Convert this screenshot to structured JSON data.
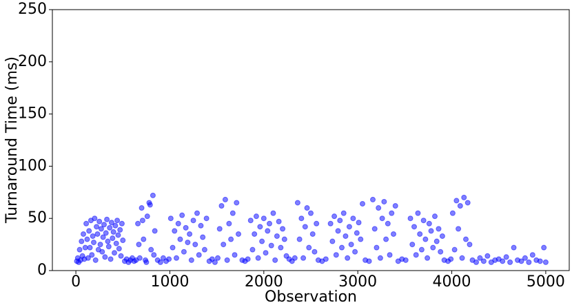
{
  "chart_data": {
    "type": "scatter",
    "x_label": "Observation",
    "y_label": "Turnaround Time (ms)",
    "xlim": [
      -250,
      5250
    ],
    "ylim": [
      0,
      250
    ],
    "xticks": [
      0,
      1000,
      2000,
      3000,
      4000,
      5000
    ],
    "yticks": [
      0,
      50,
      100,
      150,
      200,
      250
    ],
    "color": "#0000ff",
    "opacity": 0.5,
    "grid": false,
    "x": [
      10,
      20,
      30,
      40,
      50,
      60,
      70,
      80,
      90,
      100,
      110,
      120,
      130,
      140,
      150,
      160,
      170,
      180,
      190,
      200,
      210,
      220,
      230,
      240,
      250,
      260,
      270,
      280,
      290,
      300,
      310,
      320,
      330,
      340,
      350,
      360,
      370,
      380,
      390,
      400,
      410,
      420,
      430,
      440,
      450,
      460,
      470,
      480,
      490,
      500,
      520,
      540,
      560,
      580,
      600,
      620,
      640,
      660,
      680,
      700,
      720,
      740,
      760,
      780,
      800,
      820,
      840,
      670,
      710,
      750,
      790,
      830,
      870,
      900,
      930,
      960,
      990,
      1010,
      1030,
      1050,
      1070,
      1090,
      1110,
      1130,
      1150,
      1170,
      1190,
      1210,
      1230,
      1250,
      1270,
      1290,
      1310,
      1330,
      1350,
      1370,
      1390,
      1420,
      1450,
      1480,
      1510,
      1530,
      1550,
      1570,
      1590,
      1610,
      1630,
      1650,
      1670,
      1690,
      1710,
      1730,
      1770,
      1800,
      1830,
      1860,
      1880,
      1900,
      1920,
      1940,
      1960,
      1980,
      2000,
      2020,
      2040,
      2060,
      2080,
      2100,
      2120,
      2140,
      2160,
      2180,
      2200,
      2220,
      2240,
      2270,
      2300,
      2330,
      2360,
      2380,
      2400,
      2420,
      2440,
      2460,
      2480,
      2500,
      2520,
      2540,
      2560,
      2580,
      2620,
      2660,
      2710,
      2730,
      2750,
      2770,
      2790,
      2810,
      2830,
      2850,
      2870,
      2890,
      2910,
      2930,
      2950,
      2970,
      2990,
      3010,
      3030,
      3050,
      3080,
      3120,
      3160,
      3180,
      3200,
      3220,
      3240,
      3260,
      3280,
      3300,
      3320,
      3340,
      3360,
      3380,
      3400,
      3430,
      3470,
      3510,
      3560,
      3580,
      3600,
      3620,
      3640,
      3660,
      3680,
      3700,
      3720,
      3740,
      3760,
      3780,
      3800,
      3820,
      3840,
      3860,
      3880,
      3900,
      3920,
      3960,
      3990,
      4010,
      4030,
      4050,
      4070,
      4090,
      4110,
      4130,
      4150,
      4170,
      4190,
      4220,
      4260,
      4300,
      4340,
      4380,
      4420,
      4460,
      4500,
      4540,
      4580,
      4620,
      4660,
      4700,
      4740,
      4780,
      4820,
      4860,
      4900,
      4940,
      4980,
      5000
    ],
    "y": [
      9,
      12,
      8,
      20,
      10,
      28,
      14,
      35,
      11,
      22,
      45,
      30,
      12,
      38,
      22,
      48,
      15,
      33,
      27,
      50,
      10,
      42,
      35,
      20,
      47,
      25,
      40,
      18,
      32,
      44,
      13,
      36,
      49,
      28,
      23,
      41,
      11,
      46,
      31,
      37,
      17,
      43,
      26,
      48,
      34,
      21,
      39,
      14,
      45,
      29,
      9,
      11,
      8,
      10,
      12,
      9,
      10,
      45,
      12,
      60,
      30,
      10,
      52,
      65,
      20,
      72,
      38,
      25,
      48,
      8,
      63,
      15,
      10,
      8,
      12,
      9,
      11,
      50,
      22,
      38,
      12,
      45,
      30,
      53,
      18,
      41,
      27,
      35,
      10,
      48,
      25,
      55,
      15,
      43,
      32,
      20,
      50,
      9,
      11,
      8,
      12,
      40,
      62,
      25,
      68,
      10,
      45,
      30,
      55,
      15,
      65,
      35,
      10,
      9,
      11,
      48,
      20,
      35,
      52,
      12,
      42,
      28,
      50,
      17,
      38,
      45,
      24,
      55,
      10,
      33,
      47,
      22,
      40,
      30,
      14,
      11,
      9,
      12,
      65,
      30,
      50,
      12,
      42,
      60,
      22,
      55,
      35,
      18,
      45,
      10,
      9,
      11,
      45,
      28,
      52,
      15,
      38,
      48,
      22,
      55,
      33,
      12,
      42,
      25,
      50,
      18,
      36,
      46,
      30,
      64,
      10,
      9,
      68,
      40,
      22,
      60,
      12,
      50,
      66,
      30,
      45,
      15,
      55,
      35,
      62,
      9,
      11,
      10,
      50,
      25,
      42,
      15,
      55,
      35,
      20,
      48,
      30,
      12,
      45,
      38,
      22,
      52,
      28,
      40,
      18,
      33,
      10,
      9,
      11,
      55,
      20,
      67,
      40,
      62,
      12,
      70,
      30,
      65,
      25,
      10,
      8,
      12,
      9,
      14,
      8,
      10,
      11,
      9,
      13,
      8,
      22,
      10,
      9,
      12,
      8,
      15,
      10,
      9,
      22,
      8
    ]
  }
}
